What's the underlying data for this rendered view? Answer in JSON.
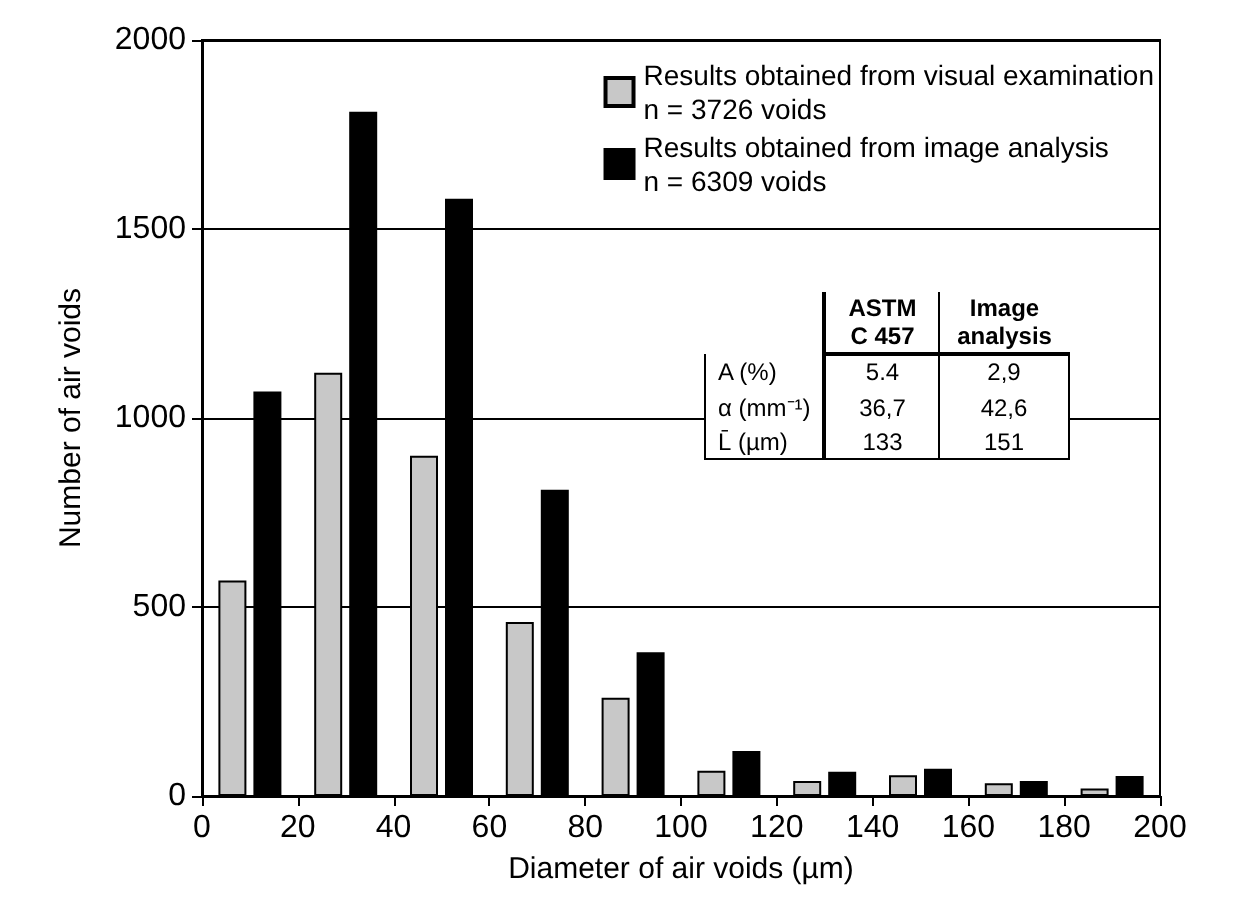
{
  "chart_data": {
    "type": "bar",
    "xlabel": "Diameter of air voids (µm)",
    "ylabel": "Number of air voids",
    "x": [
      10,
      30,
      50,
      70,
      90,
      110,
      130,
      150,
      170,
      190
    ],
    "series": [
      {
        "name": "Results obtained from visual examination\nn = 3726 voids",
        "color": "#c8c8c8",
        "values": [
          570,
          1120,
          900,
          460,
          260,
          67,
          40,
          55,
          34,
          20
        ]
      },
      {
        "name": "Results obtained from image analysis\nn = 6309 voids",
        "color": "#000000",
        "values": [
          1070,
          1810,
          1580,
          810,
          380,
          119,
          64,
          72,
          40,
          53
        ]
      }
    ],
    "xlim": [
      0,
      200
    ],
    "xticks": [
      0,
      20,
      40,
      60,
      80,
      100,
      120,
      140,
      160,
      180,
      200
    ],
    "ylim": [
      0,
      2000
    ],
    "yticks": [
      0,
      500,
      1000,
      1500,
      2000
    ],
    "grid": "y",
    "legend": "top right",
    "annotations": [
      "ASTM C 457",
      "Image analysis",
      "A (%)",
      "5.4",
      "2,9",
      "α (mm⁻¹)",
      "36,7",
      "42,6",
      "L̄ (µm)",
      "133",
      "151"
    ]
  }
}
